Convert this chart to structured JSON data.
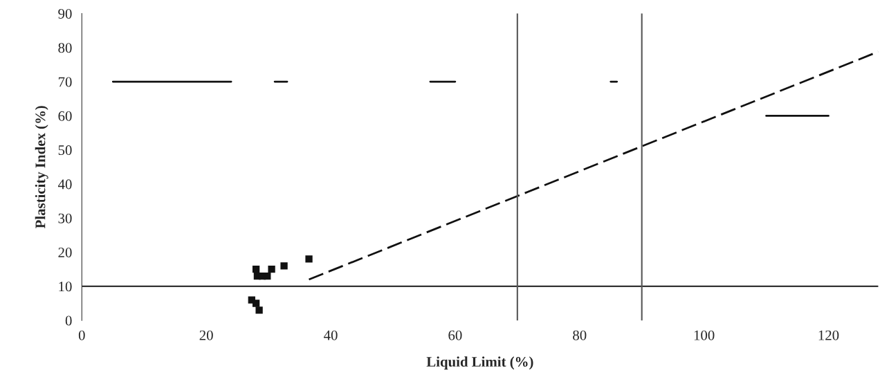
{
  "chart_data": {
    "type": "scatter",
    "xlabel": "Liquid Limit (%)",
    "ylabel": "Plasticity Index (%)",
    "xlim": [
      0,
      128
    ],
    "ylim": [
      0,
      90
    ],
    "xticks": [
      0,
      20,
      40,
      60,
      80,
      100,
      120
    ],
    "yticks": [
      0,
      10,
      20,
      30,
      40,
      50,
      60,
      70,
      80,
      90
    ],
    "grid": false,
    "series": [
      {
        "color": "#111111",
        "marker": "square",
        "x": [
          28,
          28.2,
          29,
          29.8,
          30.5,
          32.5,
          36.5,
          27.3,
          28,
          28.5
        ],
        "values": [
          15,
          13,
          13,
          13,
          15,
          16,
          18,
          6,
          5,
          3
        ]
      },
      {
        "type": "line",
        "color": "#111111",
        "line_style": "dashed",
        "x": [
          36.5,
          128
        ],
        "values": [
          12,
          78.8
        ]
      },
      {
        "type": "line",
        "color": "#111111",
        "line_style": "solid",
        "x": [
          5,
          24,
          28,
          31,
          33,
          45,
          56,
          60,
          70,
          85,
          86,
          100,
          110,
          120
        ],
        "values": [
          70,
          70,
          null,
          70,
          70,
          null,
          70,
          70,
          null,
          70,
          70,
          null,
          60,
          60
        ]
      }
    ],
    "ref_lines": [
      {
        "axis": "y",
        "value": 10,
        "color": "#333333"
      },
      {
        "axis": "x",
        "value": 70,
        "color": "#555555"
      },
      {
        "axis": "x",
        "value": 90,
        "color": "#555555"
      }
    ]
  }
}
